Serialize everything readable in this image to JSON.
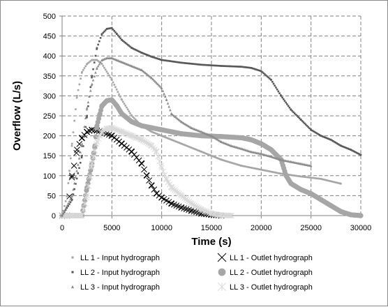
{
  "chart_data": {
    "type": "scatter",
    "xlabel": "Time (s)",
    "ylabel": "Overflow (L/s)",
    "xlim": [
      0,
      30000
    ],
    "ylim": [
      0,
      500
    ],
    "xticks": [
      "0",
      "5000",
      "10000",
      "15000",
      "20000",
      "25000",
      "30000"
    ],
    "yticks": [
      "0",
      "50",
      "100",
      "150",
      "200",
      "250",
      "300",
      "350",
      "400",
      "450",
      "500"
    ],
    "grid": true,
    "legend_position": "bottom",
    "series": [
      {
        "name": "LL 1 - Input hydrograph",
        "marker": "small-square",
        "color": "#a6a6a6",
        "points": [
          [
            0,
            0
          ],
          [
            500,
            50
          ],
          [
            1000,
            180
          ],
          [
            1500,
            300
          ],
          [
            2000,
            360
          ],
          [
            2500,
            380
          ],
          [
            3000,
            390
          ],
          [
            3500,
            390
          ],
          [
            4000,
            380
          ],
          [
            5000,
            340
          ],
          [
            6000,
            290
          ],
          [
            7000,
            250
          ],
          [
            8000,
            225
          ],
          [
            9000,
            210
          ],
          [
            10000,
            200
          ],
          [
            12000,
            180
          ],
          [
            14000,
            160
          ],
          [
            16000,
            140
          ],
          [
            18000,
            125
          ],
          [
            20000,
            115
          ],
          [
            22000,
            105
          ],
          [
            24000,
            98
          ],
          [
            26000,
            92
          ],
          [
            28000,
            80
          ]
        ]
      },
      {
        "name": "LL 2 - Input hydrograph",
        "marker": "small-square",
        "color": "#595959",
        "points": [
          [
            0,
            0
          ],
          [
            1000,
            40
          ],
          [
            2000,
            150
          ],
          [
            2500,
            250
          ],
          [
            3000,
            350
          ],
          [
            3500,
            420
          ],
          [
            4000,
            455
          ],
          [
            4500,
            468
          ],
          [
            5000,
            470
          ],
          [
            5500,
            455
          ],
          [
            6000,
            440
          ],
          [
            7000,
            420
          ],
          [
            8000,
            408
          ],
          [
            9000,
            398
          ],
          [
            10000,
            390
          ],
          [
            12000,
            383
          ],
          [
            14000,
            378
          ],
          [
            16000,
            375
          ],
          [
            18000,
            373
          ],
          [
            19000,
            370
          ],
          [
            20000,
            362
          ],
          [
            21000,
            340
          ],
          [
            22000,
            300
          ],
          [
            23000,
            265
          ],
          [
            24000,
            240
          ],
          [
            25000,
            215
          ],
          [
            26000,
            200
          ],
          [
            27000,
            190
          ],
          [
            28000,
            175
          ],
          [
            29000,
            165
          ],
          [
            30000,
            152
          ]
        ]
      },
      {
        "name": "LL 3 - Input hydrograph",
        "marker": "triangle",
        "color": "#8c8c8c",
        "points": [
          [
            0,
            0
          ],
          [
            1000,
            50
          ],
          [
            2000,
            180
          ],
          [
            2500,
            270
          ],
          [
            3000,
            330
          ],
          [
            3500,
            370
          ],
          [
            4000,
            390
          ],
          [
            4500,
            395
          ],
          [
            5000,
            395
          ],
          [
            5500,
            390
          ],
          [
            6000,
            385
          ],
          [
            7000,
            375
          ],
          [
            8000,
            365
          ],
          [
            9000,
            345
          ],
          [
            10000,
            320
          ],
          [
            10500,
            290
          ],
          [
            11000,
            255
          ],
          [
            12000,
            235
          ],
          [
            13000,
            220
          ],
          [
            14000,
            210
          ],
          [
            15000,
            200
          ],
          [
            16000,
            185
          ],
          [
            17000,
            175
          ],
          [
            18000,
            168
          ],
          [
            19000,
            160
          ],
          [
            20000,
            155
          ],
          [
            21000,
            148
          ],
          [
            22000,
            140
          ],
          [
            23000,
            135
          ],
          [
            24000,
            130
          ],
          [
            25000,
            125
          ]
        ]
      },
      {
        "name": "LL 1 - Outlet hydrograph",
        "marker": "x",
        "color": "#000000",
        "points": [
          [
            0,
            0
          ],
          [
            500,
            0
          ],
          [
            1000,
            100
          ],
          [
            1200,
            125
          ],
          [
            1500,
            165
          ],
          [
            2000,
            195
          ],
          [
            2500,
            210
          ],
          [
            3000,
            215
          ],
          [
            3500,
            213
          ],
          [
            4000,
            210
          ],
          [
            5000,
            200
          ],
          [
            6000,
            180
          ],
          [
            7000,
            160
          ],
          [
            8000,
            130
          ],
          [
            8500,
            100
          ],
          [
            9000,
            75
          ],
          [
            9500,
            55
          ],
          [
            10000,
            45
          ],
          [
            11000,
            30
          ],
          [
            12000,
            20
          ],
          [
            13000,
            12
          ],
          [
            14000,
            5
          ],
          [
            15000,
            2
          ],
          [
            16000,
            0
          ]
        ]
      },
      {
        "name": "LL 2 - Outlet hydrograph",
        "marker": "circle",
        "color": "#a6a6a6",
        "points": [
          [
            0,
            0
          ],
          [
            1000,
            0
          ],
          [
            2000,
            0
          ],
          [
            2500,
            70
          ],
          [
            3000,
            130
          ],
          [
            3300,
            175
          ],
          [
            3500,
            225
          ],
          [
            3800,
            255
          ],
          [
            4000,
            275
          ],
          [
            4500,
            288
          ],
          [
            5000,
            290
          ],
          [
            5500,
            275
          ],
          [
            6000,
            255
          ],
          [
            7000,
            235
          ],
          [
            8000,
            225
          ],
          [
            9000,
            220
          ],
          [
            10000,
            215
          ],
          [
            12000,
            205
          ],
          [
            14000,
            200
          ],
          [
            16000,
            198
          ],
          [
            18000,
            195
          ],
          [
            19000,
            190
          ],
          [
            20000,
            180
          ],
          [
            21000,
            165
          ],
          [
            22000,
            140
          ],
          [
            22500,
            100
          ],
          [
            23000,
            80
          ],
          [
            24000,
            65
          ],
          [
            25000,
            55
          ],
          [
            26000,
            40
          ],
          [
            27000,
            25
          ],
          [
            28000,
            10
          ],
          [
            29000,
            2
          ],
          [
            30000,
            0
          ]
        ]
      },
      {
        "name": "LL 3 - Outlet hydrograph",
        "marker": "star",
        "color": "#d9d9d9",
        "points": [
          [
            0,
            0
          ],
          [
            1000,
            0
          ],
          [
            2000,
            0
          ],
          [
            2500,
            50
          ],
          [
            3000,
            130
          ],
          [
            3500,
            185
          ],
          [
            4000,
            210
          ],
          [
            4500,
            218
          ],
          [
            5000,
            220
          ],
          [
            6000,
            210
          ],
          [
            7000,
            200
          ],
          [
            8000,
            190
          ],
          [
            9000,
            175
          ],
          [
            9500,
            160
          ],
          [
            10000,
            120
          ],
          [
            10500,
            90
          ],
          [
            11000,
            70
          ],
          [
            12000,
            50
          ],
          [
            13000,
            30
          ],
          [
            14000,
            15
          ],
          [
            15000,
            5
          ],
          [
            16000,
            1
          ],
          [
            17000,
            0
          ]
        ]
      }
    ]
  }
}
